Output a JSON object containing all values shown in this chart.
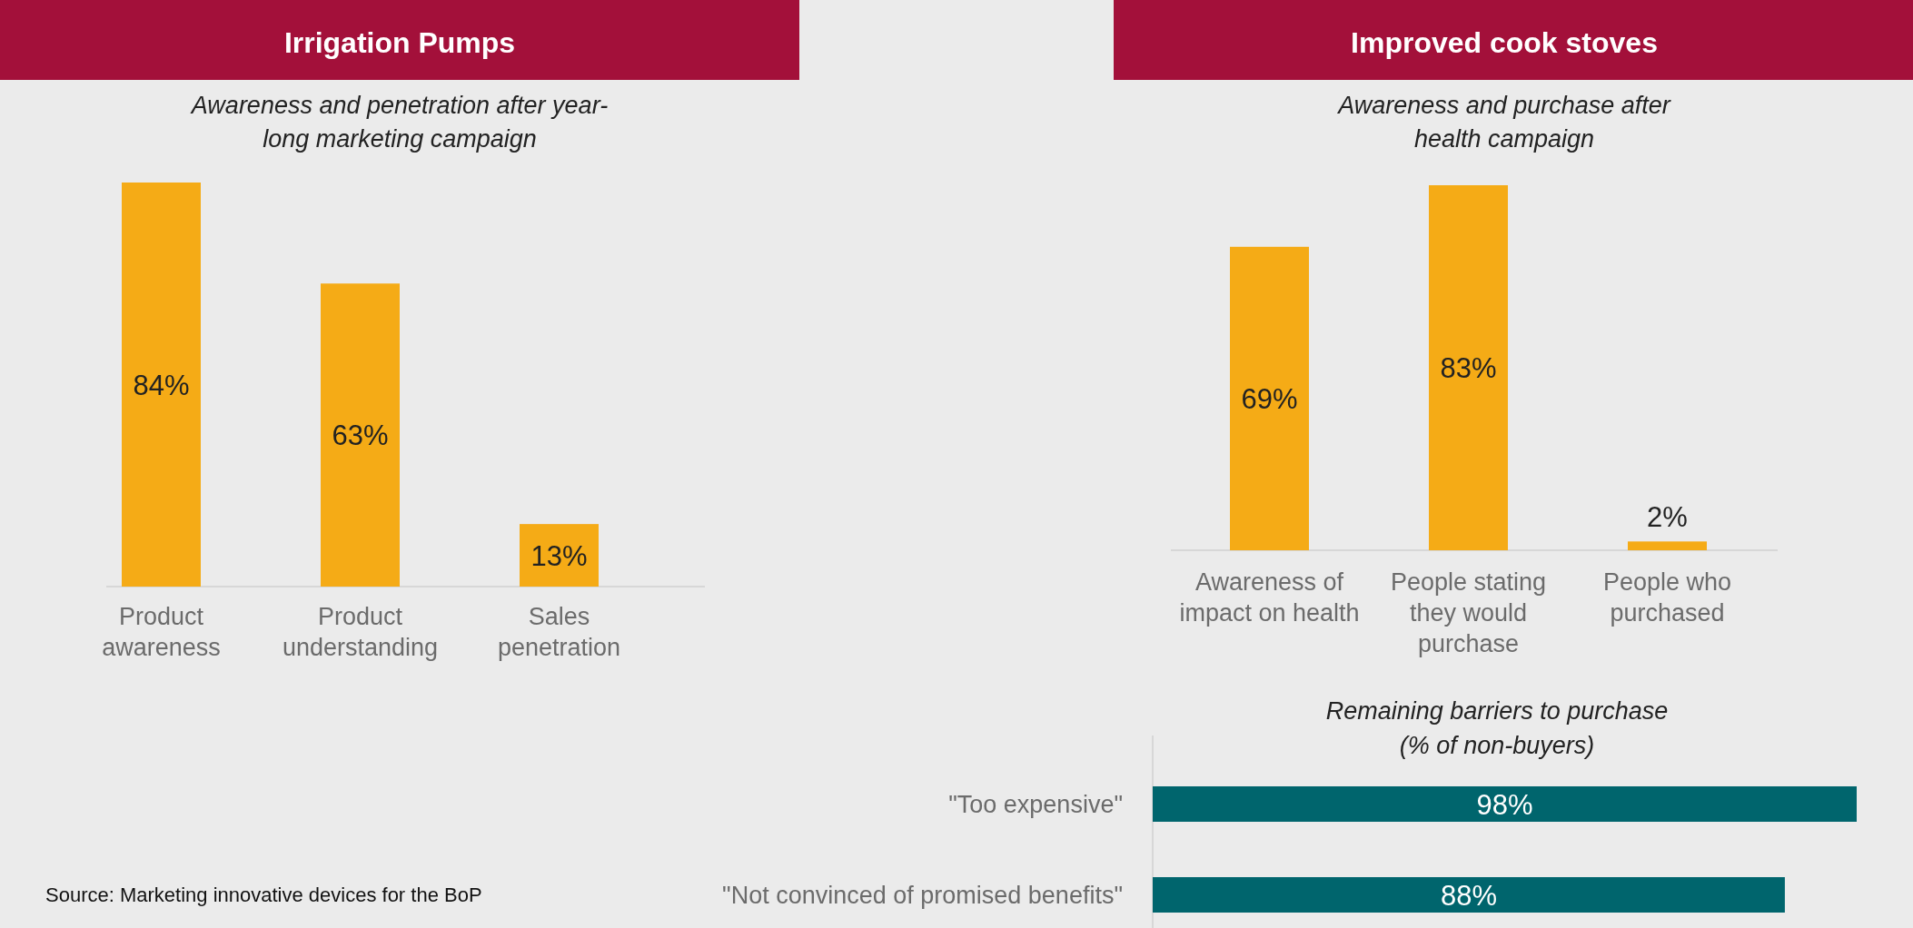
{
  "chart_data": [
    {
      "type": "bar",
      "title": "Irrigation Pumps",
      "subtitle": "Awareness and penetration after year-long marketing campaign",
      "categories": [
        "Product awareness",
        "Product understanding",
        "Sales penetration"
      ],
      "values": [
        84,
        63,
        13
      ],
      "value_labels": [
        "84%",
        "63%",
        "13%"
      ],
      "color": "#f5ab16",
      "annotations": [
        "Source: Marketing innovative devices for the BoP"
      ]
    },
    {
      "type": "bar",
      "title": "Improved cook stoves",
      "subtitle": "Awareness and purchase after health campaign",
      "categories": [
        "Awareness of impact on health",
        "People stating they would purchase",
        "People who purchased"
      ],
      "values": [
        69,
        83,
        2
      ],
      "value_labels": [
        "69%",
        "83%",
        "2%"
      ],
      "color": "#f5ab16"
    },
    {
      "type": "bar",
      "orientation": "horizontal",
      "title": "Remaining barriers to purchase (% of non-buyers)",
      "categories": [
        "\"Too expensive\"",
        "\"Not convinced of promised benefits\""
      ],
      "values": [
        98,
        88
      ],
      "value_labels": [
        "98%",
        "88%"
      ],
      "color": "#00656d"
    }
  ]
}
